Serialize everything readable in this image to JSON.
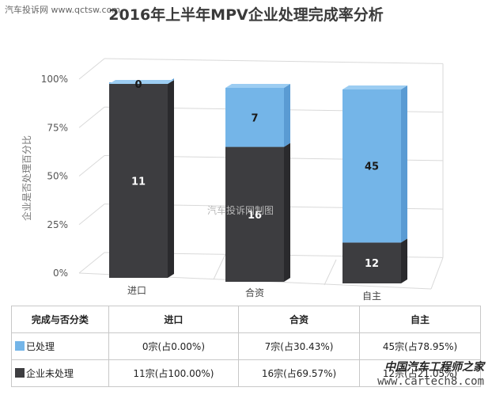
{
  "watermark_top_left": "汽车投诉网 www.qctsw.com",
  "watermark_center": "汽车投诉网制图",
  "watermark_bottom_right": {
    "cn": "中国汽车工程师之家",
    "url": "www.cartech8.com"
  },
  "colors": {
    "processed": "#74b5e8",
    "processed_side": "#5a9bd3",
    "processed_top": "#9ccdf2",
    "unprocessed": "#3d3d40",
    "unprocessed_side": "#2a2a2d",
    "unprocessed_top": "#555558",
    "grid": "#d9d9d9"
  },
  "chart_data": {
    "type": "bar",
    "stacked": true,
    "percent": true,
    "title": "2016年上半年MPV企业处理完成率分析",
    "ylabel": "企业是否处理百分比",
    "ylim": [
      0,
      100
    ],
    "yticks": [
      "0%",
      "25%",
      "50%",
      "75%",
      "100%"
    ],
    "categories": [
      "进口",
      "合资",
      "自主"
    ],
    "series": [
      {
        "name": "企业未处理",
        "values": [
          11,
          16,
          12
        ],
        "color": "#3d3d40"
      },
      {
        "name": "已处理",
        "values": [
          0,
          7,
          45
        ],
        "color": "#74b5e8"
      }
    ],
    "grid": true,
    "legend": "table"
  },
  "table": {
    "header": [
      "完成与否分类",
      "进口",
      "合资",
      "自主"
    ],
    "rows": [
      {
        "label": "已处理",
        "swatch": "#74b5e8",
        "cells": [
          "0宗(占0.00%)",
          "7宗(占30.43%)",
          "45宗(占78.95%)"
        ]
      },
      {
        "label": "企业未处理",
        "swatch": "#3d3d40",
        "cells": [
          "11宗(占100.00%)",
          "16宗(占69.57%)",
          "12宗(占21.05%)"
        ]
      }
    ]
  }
}
